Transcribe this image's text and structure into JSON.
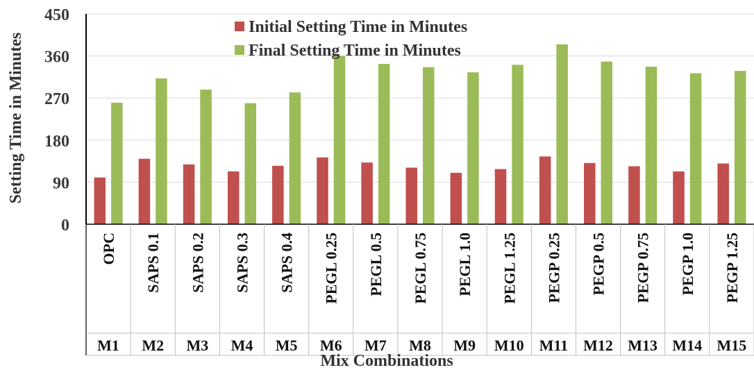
{
  "chart_data": {
    "type": "bar",
    "title": "",
    "ylabel": "Setting Time in Minutes",
    "xlabel": "Mix Combinations",
    "ylim": [
      0,
      450
    ],
    "yticks": [
      0,
      90,
      180,
      270,
      360,
      450
    ],
    "grid": true,
    "legend_position": "top-center",
    "categories": [
      "OPC",
      "SAPS 0.1",
      "SAPS 0.2",
      "SAPS 0.3",
      "SAPS 0.4",
      "PEGL 0.25",
      "PEGL 0.5",
      "PEGL 0.75",
      "PEGL 1.0",
      "PEGL 1.25",
      "PEGP 0.25",
      "PEGP 0.5",
      "PEGP 0.75",
      "PEGP 1.0",
      "PEGP 1.25"
    ],
    "mix_ids": [
      "M1",
      "M2",
      "M3",
      "M4",
      "M5",
      "M6",
      "M7",
      "M8",
      "M9",
      "M10",
      "M11",
      "M12",
      "M13",
      "M14",
      "M15"
    ],
    "series": [
      {
        "name": "Initial Setting Time in Minutes",
        "color": "#c0504d",
        "values": [
          100,
          140,
          128,
          113,
          125,
          143,
          132,
          121,
          110,
          118,
          145,
          131,
          124,
          113,
          130
        ]
      },
      {
        "name": "Final Setting Time in Minutes",
        "color": "#9bbb59",
        "values": [
          260,
          312,
          288,
          259,
          282,
          360,
          343,
          336,
          325,
          341,
          385,
          348,
          337,
          323,
          328
        ]
      }
    ]
  }
}
